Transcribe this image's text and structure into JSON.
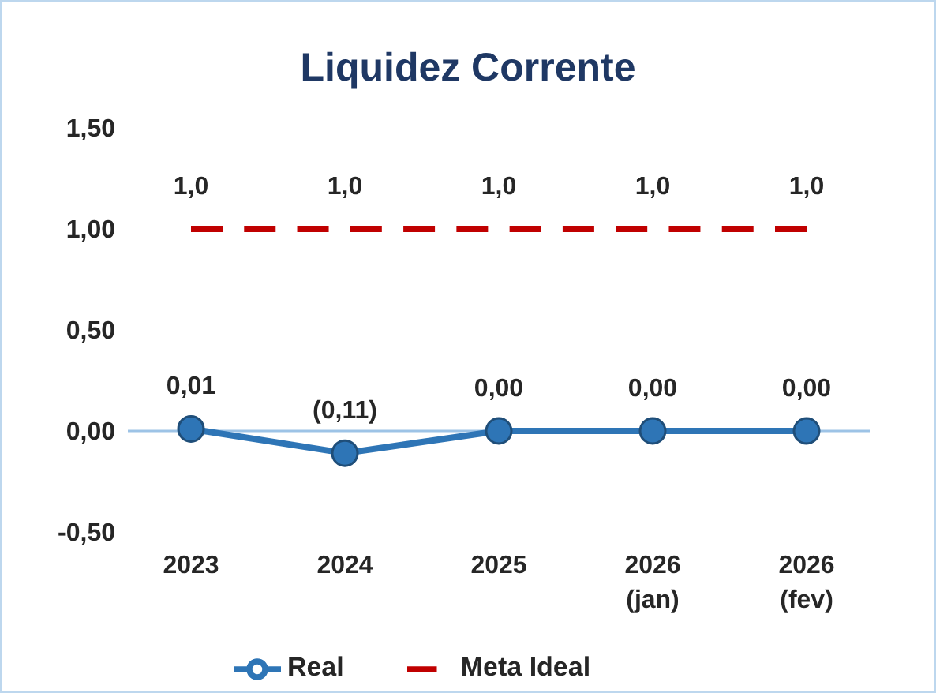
{
  "chart_data": {
    "type": "line",
    "title": "Liquidez Corrente",
    "categories": [
      "2023",
      "2024",
      "2025",
      "2026\n(jan)",
      "2026\n(fev)"
    ],
    "series": [
      {
        "name": "Real",
        "color": "#2e75b6",
        "values": [
          0.01,
          -0.11,
          0.0,
          0.0,
          0.0
        ],
        "value_labels": [
          "0,01",
          "(0,11)",
          "0,00",
          "0,00",
          "0,00"
        ],
        "marker": "circle",
        "line_style": "solid"
      },
      {
        "name": "Meta Ideal",
        "color": "#c00000",
        "values": [
          1.0,
          1.0,
          1.0,
          1.0,
          1.0
        ],
        "value_labels": [
          "1,0",
          "1,0",
          "1,0",
          "1,0",
          "1,0"
        ],
        "marker": "none",
        "line_style": "dashed"
      }
    ],
    "ylim": [
      -0.5,
      1.5
    ],
    "yticks": [
      {
        "value": -0.5,
        "label": "-0,50"
      },
      {
        "value": 0,
        "label": "0,00"
      },
      {
        "value": 0.5,
        "label": "0,50"
      },
      {
        "value": 1,
        "label": "1,00"
      },
      {
        "value": 1.5,
        "label": "1,50"
      }
    ],
    "ref_lines": [
      {
        "axis": "y",
        "value": 0,
        "color": "#9dc3e6"
      }
    ],
    "grid": false,
    "legend": "bottom"
  }
}
